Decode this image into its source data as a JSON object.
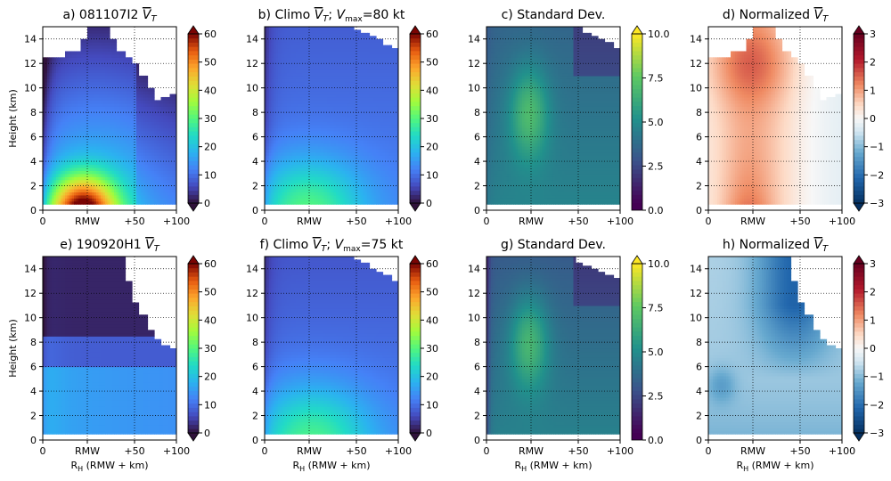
{
  "chart_data": [
    {
      "id": "a",
      "type": "heatmap",
      "title_prefix": "a) 081107I2 ",
      "title_symbol": "V",
      "title_sub": "T",
      "title_tail": "",
      "ylabel": "Height (km)",
      "xlabel": "",
      "colormap": "turbo",
      "clim": [
        0,
        60
      ],
      "cbar_ticks": [
        "0",
        "10",
        "20",
        "30",
        "40",
        "50",
        "60"
      ],
      "extend": "both",
      "profile": [
        12.4,
        12.4,
        12.4,
        13,
        13,
        14,
        15,
        15,
        15,
        14,
        13,
        12.5,
        12,
        11,
        10,
        9,
        9.3,
        9.5
      ]
    },
    {
      "id": "b",
      "type": "heatmap",
      "title_prefix": "b) Climo ",
      "title_symbol": "V",
      "title_sub": "T",
      "title_tail": "; V_max=80 kt",
      "ylabel": "",
      "xlabel": "",
      "colormap": "turbo",
      "clim": [
        0,
        60
      ],
      "cbar_ticks": [
        "0",
        "10",
        "20",
        "30",
        "40",
        "50",
        "60"
      ],
      "extend": "both",
      "profile": [
        15,
        15,
        15,
        15,
        15,
        15,
        15,
        15,
        15,
        15,
        15,
        15,
        14.8,
        14.5,
        14.2,
        14,
        13.6,
        13.2
      ]
    },
    {
      "id": "c",
      "type": "heatmap",
      "title_prefix": "c) Standard Dev.",
      "title_symbol": "",
      "title_sub": "",
      "title_tail": "",
      "ylabel": "",
      "xlabel": "",
      "colormap": "viridis",
      "clim": [
        0,
        10
      ],
      "cbar_ticks": [
        "0.0",
        "2.5",
        "5.0",
        "7.5",
        "10.0"
      ],
      "extend": "max",
      "profile": [
        15,
        15,
        15,
        15,
        15,
        15,
        15,
        15,
        15,
        15,
        15,
        15,
        15,
        14.5,
        14.3,
        14,
        13.8,
        13.3
      ]
    },
    {
      "id": "d",
      "type": "heatmap",
      "title_prefix": "d) Normalized ",
      "title_symbol": "V",
      "title_sub": "T",
      "title_tail": "",
      "ylabel": "",
      "xlabel": "",
      "colormap": "rdbu",
      "clim": [
        -3,
        3
      ],
      "cbar_ticks": [
        "−3",
        "−2",
        "−1",
        "0",
        "1",
        "2",
        "3"
      ],
      "extend": "both",
      "profile": [
        12.4,
        12.4,
        12.4,
        13,
        13,
        14,
        15,
        15,
        15,
        14,
        13,
        12.5,
        12,
        11,
        10,
        9,
        9.3,
        9.5
      ]
    },
    {
      "id": "e",
      "type": "heatmap",
      "title_prefix": "e) 190920H1 ",
      "title_symbol": "V",
      "title_sub": "T",
      "title_tail": "",
      "ylabel": "Height (km)",
      "xlabel": "R_H (RMW + km)",
      "colormap": "turbo",
      "clim": [
        0,
        60
      ],
      "cbar_ticks": [
        "0",
        "10",
        "20",
        "30",
        "40",
        "50",
        "60"
      ],
      "extend": "both",
      "profile": [
        15,
        15,
        15,
        15,
        15,
        15,
        15,
        15,
        15,
        15,
        15,
        13,
        11.2,
        10.2,
        9,
        8.2,
        7.8,
        7.6
      ]
    },
    {
      "id": "f",
      "type": "heatmap",
      "title_prefix": "f) Climo ",
      "title_symbol": "V",
      "title_sub": "T",
      "title_tail": "; V_max=75 kt",
      "ylabel": "",
      "xlabel": "R_H (RMW + km)",
      "colormap": "turbo",
      "clim": [
        0,
        60
      ],
      "cbar_ticks": [
        "0",
        "10",
        "20",
        "30",
        "40",
        "50",
        "60"
      ],
      "extend": "both",
      "profile": [
        15,
        15,
        15,
        15,
        15,
        15,
        15,
        15,
        15,
        15,
        15,
        15,
        14.8,
        14.5,
        14,
        13.8,
        13.4,
        13
      ]
    },
    {
      "id": "g",
      "type": "heatmap",
      "title_prefix": "g) Standard Dev.",
      "title_symbol": "",
      "title_sub": "",
      "title_tail": "",
      "ylabel": "",
      "xlabel": "R_H (RMW + km)",
      "colormap": "viridis",
      "clim": [
        0,
        10
      ],
      "cbar_ticks": [
        "0.0",
        "2.5",
        "5.0",
        "7.5",
        "10.0"
      ],
      "extend": "max",
      "profile": [
        15,
        15,
        15,
        15,
        15,
        15,
        15,
        15,
        15,
        15,
        15,
        15,
        14.5,
        14.3,
        14,
        13.8,
        13.5,
        13.2
      ]
    },
    {
      "id": "h",
      "type": "heatmap",
      "title_prefix": "h) Normalized ",
      "title_symbol": "V",
      "title_sub": "T",
      "title_tail": "",
      "ylabel": "",
      "xlabel": "R_H (RMW + km)",
      "colormap": "rdbu",
      "clim": [
        -3,
        3
      ],
      "cbar_ticks": [
        "−3",
        "−2",
        "−1",
        "0",
        "1",
        "2",
        "3"
      ],
      "extend": "both",
      "profile": [
        15,
        15,
        15,
        15,
        15,
        15,
        15,
        15,
        15,
        15,
        15,
        13,
        11.2,
        10.2,
        9,
        8.2,
        7.8,
        7.6
      ]
    }
  ],
  "axes": {
    "x_ticks": [
      "0",
      "RMW",
      "+50",
      "+100"
    ],
    "y_ticks": [
      "0",
      "2",
      "4",
      "6",
      "8",
      "10",
      "12",
      "14"
    ],
    "ylim": [
      0,
      15
    ],
    "x_gridlines_at": [
      "RMW",
      "+50"
    ],
    "grid_style": "dotted"
  }
}
